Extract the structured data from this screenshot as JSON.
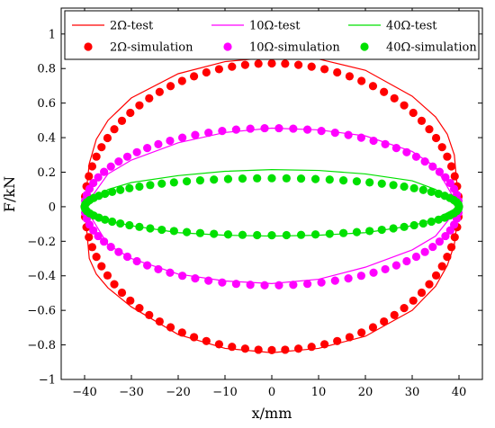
{
  "chart_data": {
    "type": "line",
    "title": "",
    "xlabel": "x/mm",
    "ylabel": "F/kN",
    "xlim": [
      -45,
      45
    ],
    "ylim": [
      -1,
      1.15
    ],
    "xticks": [
      -40,
      -30,
      -20,
      -10,
      0,
      10,
      20,
      30,
      40
    ],
    "yticks": [
      -1,
      -0.8,
      -0.6,
      -0.4,
      -0.2,
      0,
      0.2,
      0.4,
      0.6,
      0.8,
      1
    ],
    "xtick_labels": [
      "−40",
      "−30",
      "−20",
      "−10",
      "0",
      "10",
      "20",
      "30",
      "40"
    ],
    "ytick_labels": [
      "−1",
      "−0.8",
      "−0.6",
      "−0.4",
      "−0.2",
      "0",
      "0.2",
      "0.4",
      "0.6",
      "0.8",
      "1"
    ],
    "grid": false,
    "box": true,
    "legend_position": "top",
    "series": [
      {
        "name": "2Ω-test",
        "kind": "line",
        "color": "#ff0000",
        "x": [
          -40,
          -39,
          -37.5,
          -35,
          -30,
          -20,
          -10,
          0,
          10,
          20,
          30,
          35,
          37.5,
          39,
          40,
          39,
          37.5,
          35,
          30,
          20,
          10,
          0,
          -10,
          -20,
          -30,
          -35,
          -37.5,
          -39,
          -40
        ],
        "y": [
          0,
          0.25,
          0.39,
          0.5,
          0.63,
          0.77,
          0.84,
          0.865,
          0.855,
          0.79,
          0.64,
          0.52,
          0.42,
          0.3,
          0,
          -0.22,
          -0.34,
          -0.46,
          -0.6,
          -0.75,
          -0.82,
          -0.845,
          -0.82,
          -0.74,
          -0.58,
          -0.47,
          -0.39,
          -0.3,
          0
        ]
      },
      {
        "name": "10Ω-test",
        "kind": "line",
        "color": "#ff00ff",
        "x": [
          -40,
          -35,
          -30,
          -20,
          -10,
          0,
          10,
          20,
          30,
          35,
          40,
          35,
          30,
          20,
          10,
          0,
          -10,
          -20,
          -30,
          -35,
          -40
        ],
        "y": [
          0,
          0.19,
          0.27,
          0.37,
          0.43,
          0.455,
          0.445,
          0.41,
          0.32,
          0.23,
          0,
          -0.17,
          -0.25,
          -0.35,
          -0.42,
          -0.445,
          -0.43,
          -0.39,
          -0.3,
          -0.22,
          0
        ]
      },
      {
        "name": "40Ω-test",
        "kind": "line",
        "color": "#00e000",
        "x": [
          -40,
          -35,
          -30,
          -20,
          -10,
          0,
          10,
          20,
          30,
          35,
          40,
          35,
          30,
          20,
          10,
          0,
          -10,
          -20,
          -30,
          -35,
          -40
        ],
        "y": [
          0,
          0.1,
          0.14,
          0.18,
          0.205,
          0.215,
          0.21,
          0.19,
          0.15,
          0.1,
          0,
          -0.07,
          -0.11,
          -0.15,
          -0.165,
          -0.17,
          -0.165,
          -0.15,
          -0.11,
          -0.08,
          0
        ]
      },
      {
        "name": "2Ω-simulation",
        "kind": "scatter",
        "color": "#ff0000",
        "shape": "ellipse",
        "center": [
          0,
          0
        ],
        "rx": 40,
        "ry": 0.83,
        "count": 88
      },
      {
        "name": "10Ω-simulation",
        "kind": "scatter",
        "color": "#ff00ff",
        "shape": "ellipse",
        "center": [
          0,
          0
        ],
        "rx": 40,
        "ry": 0.455,
        "count": 82
      },
      {
        "name": "40Ω-simulation",
        "kind": "scatter",
        "color": "#00e000",
        "shape": "ellipse",
        "center": [
          0,
          0
        ],
        "rx": 40,
        "ry": 0.165,
        "count": 80
      }
    ]
  }
}
